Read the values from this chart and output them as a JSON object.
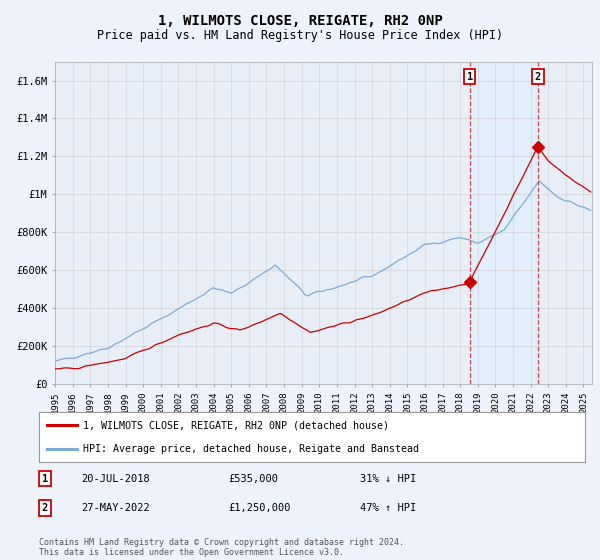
{
  "title": "1, WILMOTS CLOSE, REIGATE, RH2 0NP",
  "subtitle": "Price paid vs. HM Land Registry's House Price Index (HPI)",
  "ylabel_ticks": [
    "£0",
    "£200K",
    "£400K",
    "£600K",
    "£800K",
    "£1M",
    "£1.2M",
    "£1.4M",
    "£1.6M"
  ],
  "ylabel_values": [
    0,
    200000,
    400000,
    600000,
    800000,
    1000000,
    1200000,
    1400000,
    1600000
  ],
  "ylim": [
    0,
    1700000
  ],
  "hpi_color": "#7aabdb",
  "price_color": "#cc0000",
  "shade_color": "#ddeeff",
  "transaction1_date": "20-JUL-2018",
  "transaction1_price": "£535,000",
  "transaction1_hpi": "31% ↓ HPI",
  "transaction1_year": 2018.54,
  "transaction1_value": 535000,
  "transaction2_date": "27-MAY-2022",
  "transaction2_price": "£1,250,000",
  "transaction2_hpi": "47% ↑ HPI",
  "transaction2_year": 2022.41,
  "transaction2_value": 1250000,
  "legend1": "1, WILMOTS CLOSE, REIGATE, RH2 0NP (detached house)",
  "legend2": "HPI: Average price, detached house, Reigate and Banstead",
  "footer": "Contains HM Land Registry data © Crown copyright and database right 2024.\nThis data is licensed under the Open Government Licence v3.0.",
  "background_color": "#eef2fa",
  "plot_bg_color": "#e8eef8"
}
